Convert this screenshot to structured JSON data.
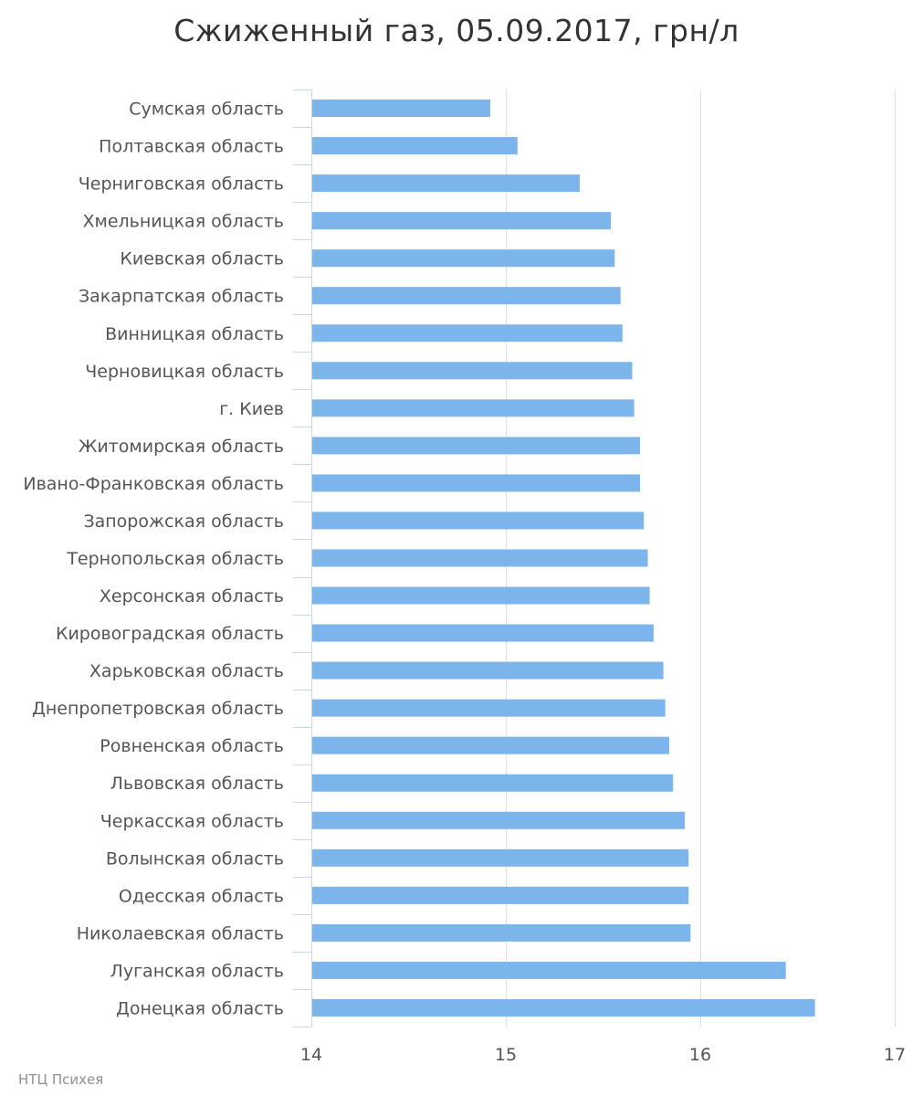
{
  "chart_data": {
    "type": "bar",
    "orientation": "horizontal",
    "title": "Сжиженный газ, 05.09.2017, грн/л",
    "xlabel": "",
    "ylabel": "",
    "xlim": [
      14,
      17
    ],
    "x_ticks": [
      "14",
      "15",
      "16",
      "17"
    ],
    "grid": true,
    "color": "#7cb5ec",
    "categories": [
      "Сумская область",
      "Полтавская область",
      "Черниговская область",
      "Хмельницкая область",
      "Киевская область",
      "Закарпатская область",
      "Винницкая область",
      "Черновицкая область",
      "г. Киев",
      "Житомирская область",
      "Ивано-Франковская область",
      "Запорожская область",
      "Тернопольская область",
      "Херсонская область",
      "Кировоградская область",
      "Харьковская область",
      "Днепропетровская область",
      "Ровненская область",
      "Львовская область",
      "Черкасская область",
      "Волынская область",
      "Одесская область",
      "Николаевская область",
      "Луганская область",
      "Донецкая область"
    ],
    "values": [
      14.92,
      15.06,
      15.38,
      15.54,
      15.56,
      15.59,
      15.6,
      15.65,
      15.66,
      15.69,
      15.69,
      15.71,
      15.73,
      15.74,
      15.76,
      15.81,
      15.82,
      15.84,
      15.86,
      15.92,
      15.94,
      15.94,
      15.95,
      16.44,
      16.59
    ]
  },
  "credit": "НТЦ Психея"
}
